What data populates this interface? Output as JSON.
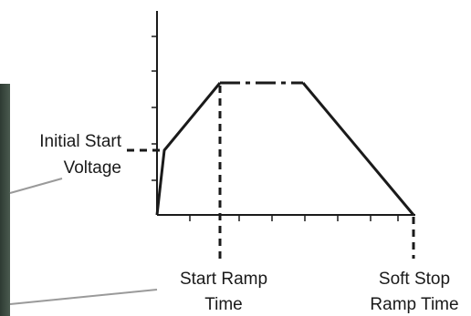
{
  "labels": {
    "initial_start_line1": "Initial Start",
    "initial_start_line2": "Voltage",
    "start_ramp_line1": "Start Ramp",
    "start_ramp_line2": "Time",
    "soft_stop_line1": "Soft Stop",
    "soft_stop_line2": "Ramp Time"
  },
  "colors": {
    "curve": "#1a1a1a",
    "axis": "#1a1a1a",
    "leader_line": "#9a9a9a",
    "left_panel_dark": "#2e3b33",
    "left_panel_light": "#4a5a4f"
  }
}
